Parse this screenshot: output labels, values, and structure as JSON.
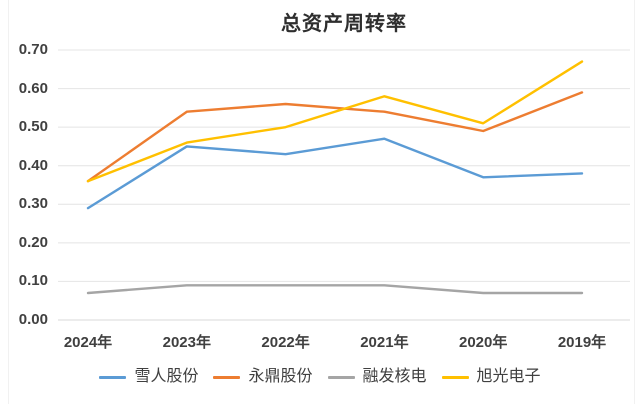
{
  "chart_data": {
    "type": "line",
    "title": "总资产周转率",
    "categories": [
      "2024年",
      "2023年",
      "2022年",
      "2021年",
      "2020年",
      "2019年"
    ],
    "series": [
      {
        "name": "雪人股份",
        "color": "#5B9BD5",
        "values": [
          0.29,
          0.45,
          0.43,
          0.47,
          0.37,
          0.38
        ]
      },
      {
        "name": "永鼎股份",
        "color": "#ED7D31",
        "values": [
          0.36,
          0.54,
          0.56,
          0.54,
          0.49,
          0.59
        ]
      },
      {
        "name": "融发核电",
        "color": "#A5A5A5",
        "values": [
          0.07,
          0.09,
          0.09,
          0.09,
          0.07,
          0.07
        ]
      },
      {
        "name": "旭光电子",
        "color": "#FFC000",
        "values": [
          0.36,
          0.46,
          0.5,
          0.58,
          0.51,
          0.67
        ]
      }
    ],
    "yticks": [
      "0.00",
      "0.10",
      "0.20",
      "0.30",
      "0.40",
      "0.50",
      "0.60",
      "0.70"
    ],
    "ylim": [
      0,
      0.7
    ],
    "ytick_step": 0.1,
    "xlabel": "",
    "ylabel": "",
    "grid": true,
    "legend_position": "bottom",
    "colors": {
      "grid_line": "#E4E4E4",
      "axis_line": "#D9D9D9",
      "tick_label": "#404040",
      "title_text": "#2E2E2E",
      "background": "#FFFFFF"
    }
  }
}
